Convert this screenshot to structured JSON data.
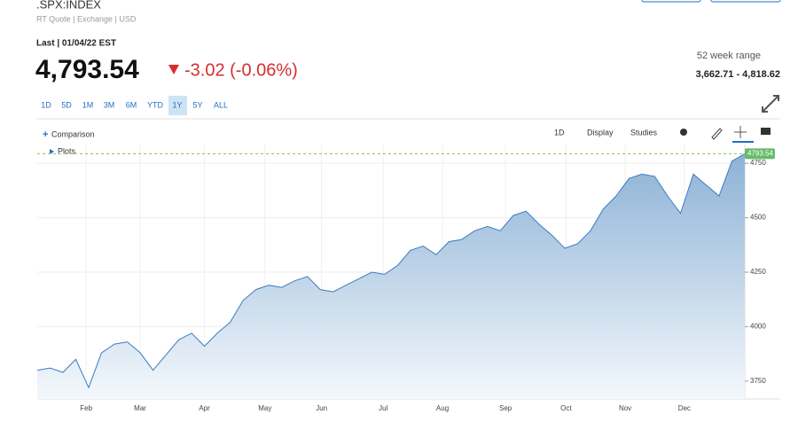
{
  "header": {
    "symbol": ".SPX:INDEX",
    "subtitle": "RT Quote | Exchange | USD",
    "last_label": "Last | 01/04/22 EST",
    "price": "4,793.54",
    "change": "-3.02 (-0.06%)",
    "range_title": "52 week range",
    "range_value": "3,662.71 - 4,818.62"
  },
  "range_buttons": [
    "1D",
    "5D",
    "1M",
    "3M",
    "6M",
    "YTD",
    "1Y",
    "5Y",
    "ALL"
  ],
  "toolbar": {
    "comparison": "Comparison",
    "interval": "1D",
    "display": "Display",
    "studies": "Studies",
    "plots": "Plots"
  },
  "chart_data": {
    "type": "area",
    "color": "#3a7cc0",
    "values": [
      3800,
      3810,
      3790,
      3850,
      3720,
      3880,
      3920,
      3930,
      3880,
      3800,
      3870,
      3940,
      3970,
      3910,
      3970,
      4020,
      4120,
      4170,
      4190,
      4180,
      4210,
      4230,
      4170,
      4160,
      4190,
      4220,
      4250,
      4240,
      4280,
      4350,
      4370,
      4330,
      4390,
      4400,
      4440,
      4460,
      4440,
      4510,
      4530,
      4470,
      4420,
      4360,
      4380,
      4440,
      4540,
      4600,
      4680,
      4700,
      4690,
      4600,
      4520,
      4700,
      4650,
      4600,
      4760,
      4793.54
    ],
    "xlim": [
      0,
      55
    ],
    "xticks": [
      {
        "value": 3.8,
        "label": "Feb"
      },
      {
        "value": 8,
        "label": "Mar"
      },
      {
        "value": 13,
        "label": "Apr"
      },
      {
        "value": 17.7,
        "label": "May"
      },
      {
        "value": 22.1,
        "label": "Jun"
      },
      {
        "value": 26.9,
        "label": "Jul"
      },
      {
        "value": 31.5,
        "label": "Aug"
      },
      {
        "value": 36.4,
        "label": "Sep"
      },
      {
        "value": 41.1,
        "label": "Oct"
      },
      {
        "value": 45.7,
        "label": "Nov"
      },
      {
        "value": 50.3,
        "label": "Dec"
      }
    ],
    "ylim": [
      3668,
      4836
    ],
    "yticks": [
      3750,
      4000,
      4250,
      4500,
      4750
    ],
    "grid": true
  }
}
